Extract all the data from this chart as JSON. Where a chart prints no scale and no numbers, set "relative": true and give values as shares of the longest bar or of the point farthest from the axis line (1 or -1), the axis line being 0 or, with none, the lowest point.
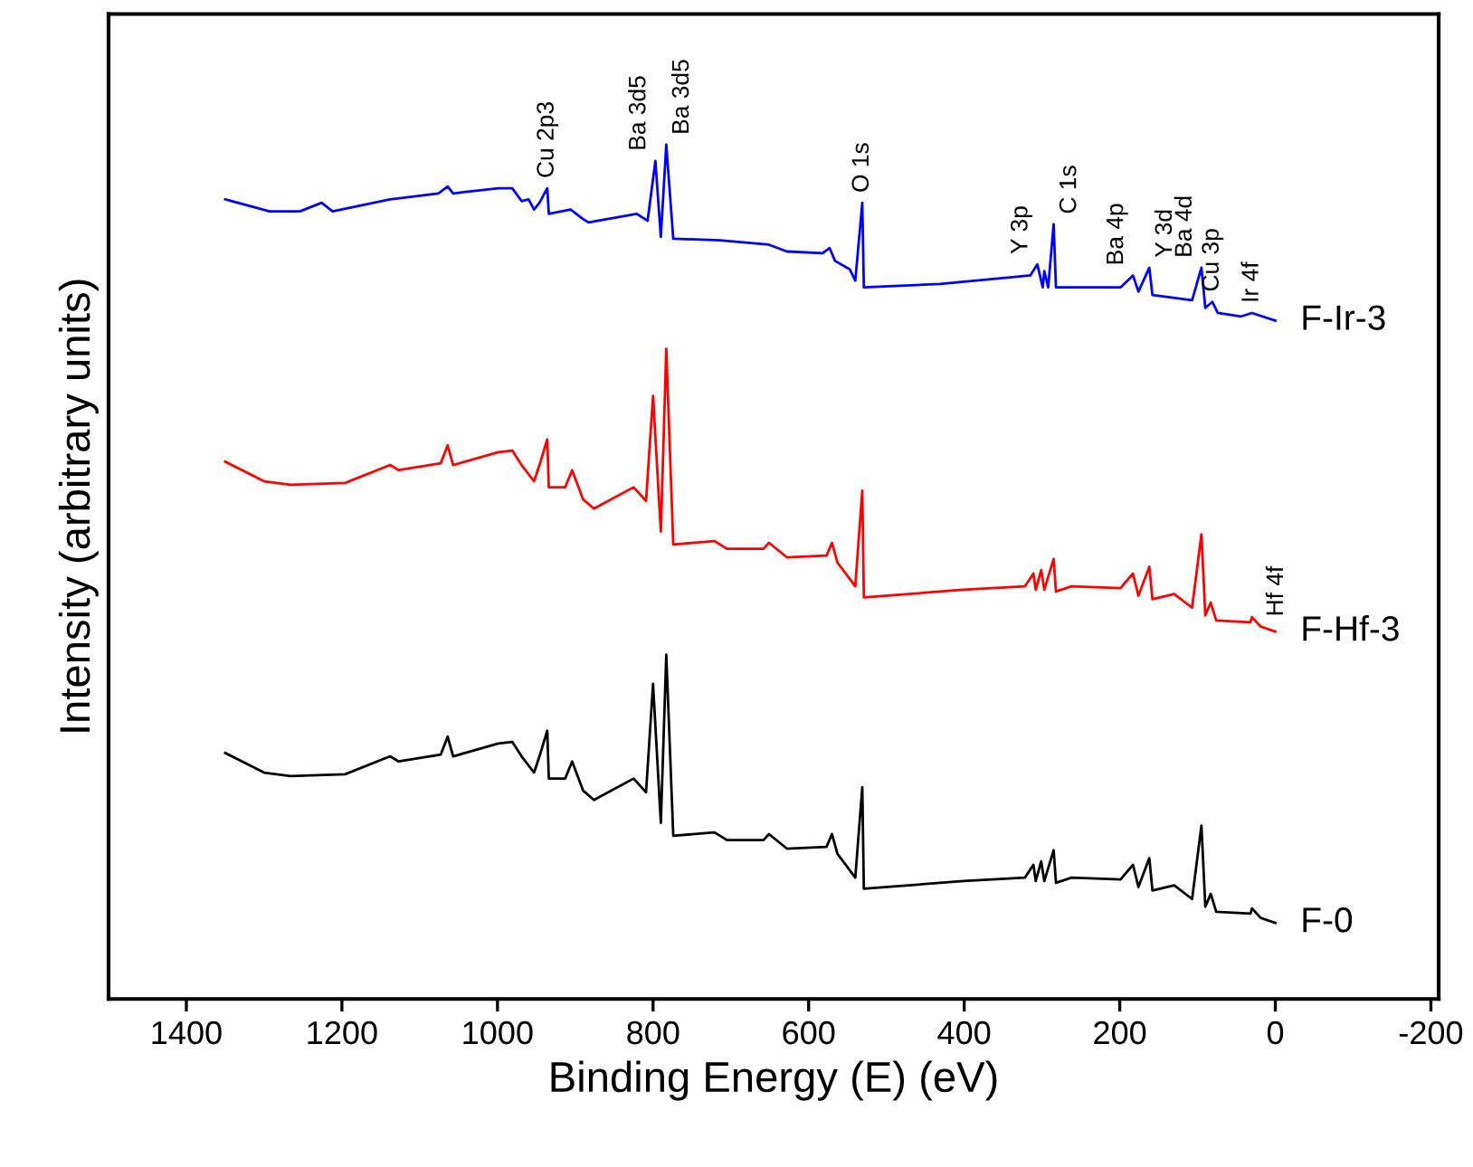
{
  "chart_data": {
    "type": "line",
    "relative": true,
    "xlabel": "Binding Energy (E) (eV)",
    "ylabel": "Intensity (arbitrary units)",
    "xlim": [
      1500,
      -210
    ],
    "xticks": [
      1400,
      1200,
      1000,
      800,
      600,
      400,
      200,
      0,
      {
        "value": -200,
        "label": "-200"
      }
    ],
    "grid": false,
    "legend": false,
    "tick_labels": "x",
    "series": [
      {
        "name": "F-0",
        "color": "#000000",
        "x": [
          1350,
          1300,
          1266,
          1196,
          1138,
          1127,
          1073,
          1064,
          1057,
          999,
          981,
          969,
          953,
          946,
          936,
          934,
          913,
          904,
          890,
          876,
          825,
          809,
          800,
          790,
          783,
          774,
          721,
          705,
          658,
          651,
          628,
          577,
          570,
          563,
          540,
          531,
          529,
          401,
          322,
          311,
          308,
          301,
          297,
          285,
          282,
          262,
          199,
          183,
          176,
          162,
          158,
          130,
          107,
          95,
          90,
          83,
          76,
          32,
          30,
          19,
          0
        ],
        "values": [
          0.288,
          0.265,
          0.261,
          0.263,
          0.284,
          0.278,
          0.286,
          0.307,
          0.284,
          0.299,
          0.301,
          0.284,
          0.265,
          0.284,
          0.314,
          0.258,
          0.258,
          0.278,
          0.244,
          0.233,
          0.258,
          0.242,
          0.369,
          0.206,
          0.403,
          0.191,
          0.195,
          0.186,
          0.186,
          0.193,
          0.176,
          0.178,
          0.193,
          0.17,
          0.142,
          0.248,
          0.129,
          0.138,
          0.142,
          0.157,
          0.138,
          0.161,
          0.138,
          0.174,
          0.136,
          0.142,
          0.14,
          0.157,
          0.131,
          0.165,
          0.127,
          0.133,
          0.117,
          0.203,
          0.108,
          0.123,
          0.102,
          0.1,
          0.106,
          0.095,
          0.089
        ]
      },
      {
        "name": "F-Hf-3",
        "color": "#ff0000",
        "x": [
          1350,
          1300,
          1266,
          1196,
          1138,
          1127,
          1073,
          1064,
          1057,
          999,
          981,
          969,
          953,
          946,
          936,
          934,
          913,
          904,
          890,
          876,
          825,
          809,
          800,
          790,
          783,
          774,
          721,
          705,
          658,
          651,
          628,
          577,
          570,
          563,
          540,
          531,
          529,
          401,
          322,
          311,
          308,
          301,
          297,
          285,
          282,
          262,
          199,
          183,
          176,
          162,
          158,
          130,
          107,
          95,
          90,
          83,
          76,
          32,
          30,
          19,
          0
        ],
        "values": [
          0.629,
          0.606,
          0.602,
          0.604,
          0.625,
          0.619,
          0.627,
          0.648,
          0.625,
          0.64,
          0.642,
          0.625,
          0.606,
          0.625,
          0.655,
          0.599,
          0.599,
          0.619,
          0.585,
          0.574,
          0.599,
          0.583,
          0.706,
          0.547,
          0.761,
          0.532,
          0.536,
          0.527,
          0.527,
          0.534,
          0.517,
          0.519,
          0.534,
          0.511,
          0.483,
          0.595,
          0.47,
          0.479,
          0.483,
          0.498,
          0.479,
          0.502,
          0.479,
          0.515,
          0.477,
          0.483,
          0.481,
          0.498,
          0.472,
          0.506,
          0.468,
          0.474,
          0.458,
          0.544,
          0.449,
          0.464,
          0.443,
          0.441,
          0.447,
          0.436,
          0.43
        ]
      },
      {
        "name": "F-Ir-3",
        "color": "#0000ff",
        "x": [
          1350,
          1293,
          1254,
          1226,
          1212,
          1138,
          1076,
          1064,
          1057,
          999,
          981,
          969,
          960,
          953,
          946,
          936,
          934,
          906,
          890,
          883,
          821,
          807,
          797,
          790,
          783,
          774,
          714,
          651,
          628,
          582,
          573,
          566,
          547,
          540,
          531,
          529,
          431,
          338,
          315,
          306,
          299,
          297,
          292,
          285,
          282,
          199,
          183,
          176,
          162,
          158,
          107,
          95,
          90,
          81,
          74,
          44,
          30,
          0
        ],
        "values": [
          0.936,
          0.922,
          0.922,
          0.932,
          0.922,
          0.936,
          0.943,
          0.951,
          0.943,
          0.949,
          0.949,
          0.934,
          0.936,
          0.924,
          0.932,
          0.949,
          0.919,
          0.924,
          0.913,
          0.909,
          0.919,
          0.911,
          0.981,
          0.892,
          1,
          0.89,
          0.888,
          0.883,
          0.875,
          0.873,
          0.879,
          0.864,
          0.854,
          0.841,
          0.932,
          0.833,
          0.837,
          0.845,
          0.847,
          0.86,
          0.833,
          0.852,
          0.833,
          0.907,
          0.833,
          0.833,
          0.847,
          0.828,
          0.856,
          0.824,
          0.818,
          0.856,
          0.809,
          0.816,
          0.803,
          0.799,
          0.803,
          0.794
        ]
      }
    ],
    "annotations": [
      {
        "text": "Cu 2p3",
        "x": 936,
        "y": 0.949
      },
      {
        "text": "Ba 3d5",
        "x": 797,
        "y": 0.981
      },
      {
        "text": "Ba 3d5",
        "x": 783,
        "y": 1
      },
      {
        "text": "O 1s",
        "x": 531,
        "y": 0.932
      },
      {
        "text": "Y 3p",
        "x": 306,
        "y": 0.86
      },
      {
        "text": "C 1s",
        "x": 285,
        "y": 0.907
      },
      {
        "text": "Ba 4p",
        "x": 183,
        "y": 0.847
      },
      {
        "text": "Y 3d",
        "x": 162,
        "y": 0.856
      },
      {
        "text": "Ba 4d",
        "x": 95,
        "y": 0.856
      },
      {
        "text": "Cu 3p",
        "x": 81,
        "y": 0.816
      },
      {
        "text": "Ir 4f",
        "x": 30,
        "y": 0.803
      },
      {
        "text": "Hf 4f",
        "x": 19,
        "y": 0.436
      }
    ]
  }
}
